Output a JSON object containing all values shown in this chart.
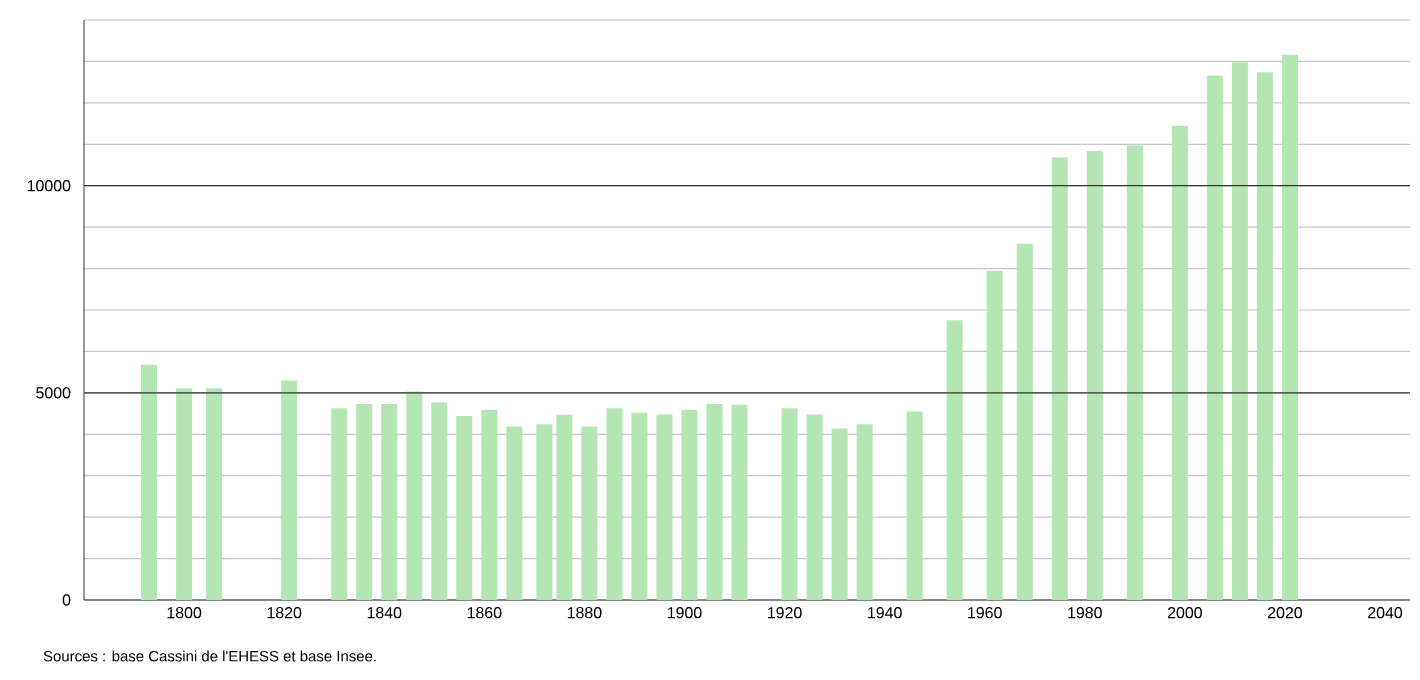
{
  "chart_data": {
    "type": "bar",
    "x": [
      1793,
      1800,
      1806,
      1821,
      1831,
      1836,
      1841,
      1846,
      1851,
      1856,
      1861,
      1866,
      1872,
      1876,
      1881,
      1886,
      1891,
      1896,
      1901,
      1906,
      1911,
      1921,
      1926,
      1931,
      1936,
      1946,
      1954,
      1962,
      1968,
      1975,
      1982,
      1990,
      1999,
      2006,
      2011,
      2016,
      2021
    ],
    "values": [
      5680,
      5110,
      5110,
      5300,
      4630,
      4730,
      4730,
      5030,
      4770,
      4440,
      4590,
      4190,
      4240,
      4470,
      4190,
      4630,
      4520,
      4480,
      4590,
      4730,
      4710,
      4630,
      4480,
      4140,
      4240,
      4550,
      6750,
      7950,
      8600,
      10680,
      10840,
      10970,
      11450,
      12660,
      12980,
      12740,
      13160
    ],
    "color": "#b3e6b3",
    "xlim": [
      1780,
      2045
    ],
    "xticks": [
      1800,
      1820,
      1840,
      1860,
      1880,
      1900,
      1920,
      1940,
      1960,
      1980,
      2000,
      2020,
      2040
    ],
    "ylim": [
      0,
      14000
    ],
    "yticks": [
      0,
      {
        "value": 1000,
        "label": null
      },
      {
        "value": 2000,
        "label": null
      },
      {
        "value": 3000,
        "label": null
      },
      {
        "value": 4000,
        "label": null
      },
      5000,
      {
        "value": 6000,
        "label": null
      },
      {
        "value": 7000,
        "label": null
      },
      {
        "value": 8000,
        "label": null
      },
      {
        "value": 9000,
        "label": null
      },
      10000,
      {
        "value": 11000,
        "label": null
      },
      {
        "value": 12000,
        "label": null
      },
      {
        "value": 13000,
        "label": null
      },
      {
        "value": 14000,
        "label": null
      }
    ],
    "grid": "y",
    "annotations": [
      "Sources : base Cassini de l'EHESS et base Insee."
    ]
  }
}
